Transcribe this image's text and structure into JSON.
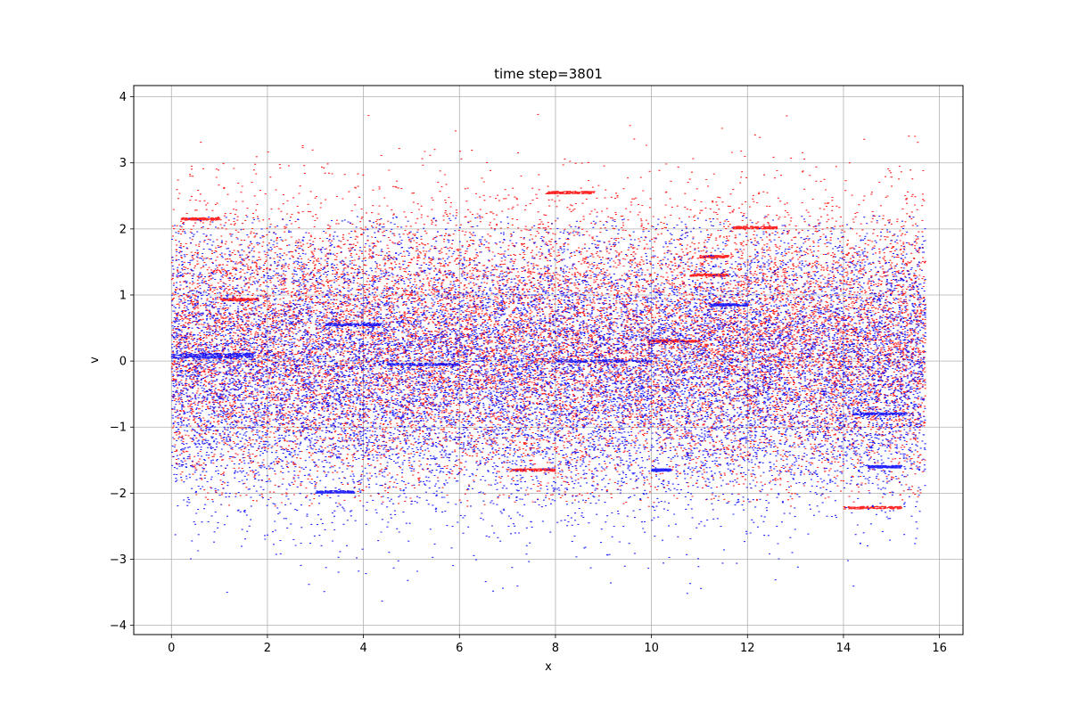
{
  "chart_data": {
    "type": "scatter",
    "title": "time step=3801",
    "xlabel": "x",
    "ylabel": "v",
    "xlim": [
      -0.785,
      16.49
    ],
    "ylim": [
      -4.14,
      4.17
    ],
    "x_ticks": [
      0,
      2,
      4,
      6,
      8,
      10,
      12,
      14,
      16
    ],
    "y_ticks": [
      -4,
      -3,
      -2,
      -1,
      0,
      1,
      2,
      3,
      4
    ],
    "x_tick_labels": [
      "0",
      "2",
      "4",
      "6",
      "8",
      "10",
      "12",
      "14",
      "16"
    ],
    "y_tick_labels": [
      "−4",
      "−3",
      "−2",
      "−1",
      "0",
      "1",
      "2",
      "3",
      "4"
    ],
    "grid": true,
    "x_range_particles": [
      0,
      15.7
    ],
    "series": [
      {
        "color": "#ff0000",
        "approx_count": 16000,
        "v_center": 0.2,
        "v_spread": 1.05,
        "v_core_range": [
          -2.0,
          2.1
        ],
        "v_tail_range": [
          -2.2,
          3.8
        ],
        "streaks": [
          {
            "x": [
              0.2,
              1.0
            ],
            "v": 2.15
          },
          {
            "x": [
              1.0,
              1.8
            ],
            "v": 0.93
          },
          {
            "x": [
              7.8,
              8.8
            ],
            "v": 2.55
          },
          {
            "x": [
              11.7,
              12.6
            ],
            "v": 2.02
          },
          {
            "x": [
              10.8,
              11.6
            ],
            "v": 1.3
          },
          {
            "x": [
              11.0,
              11.6
            ],
            "v": 1.58
          },
          {
            "x": [
              7.0,
              8.0
            ],
            "v": -1.65
          },
          {
            "x": [
              14.0,
              15.2
            ],
            "v": -2.22
          },
          {
            "x": [
              10.0,
              11.0
            ],
            "v": 0.3
          }
        ]
      },
      {
        "color": "#0000ff",
        "approx_count": 16000,
        "v_center": -0.1,
        "v_spread": 1.05,
        "v_core_range": [
          -2.0,
          2.0
        ],
        "v_tail_range": [
          -3.7,
          2.2
        ],
        "streaks": [
          {
            "x": [
              0.0,
              1.7
            ],
            "v": 0.06
          },
          {
            "x": [
              0.0,
              1.7
            ],
            "v": 0.1
          },
          {
            "x": [
              3.2,
              4.4
            ],
            "v": 0.55
          },
          {
            "x": [
              3.0,
              3.8
            ],
            "v": -1.98
          },
          {
            "x": [
              4.5,
              6.0
            ],
            "v": -0.05
          },
          {
            "x": [
              14.5,
              15.2
            ],
            "v": -1.6
          },
          {
            "x": [
              14.2,
              15.3
            ],
            "v": -0.8
          },
          {
            "x": [
              11.2,
              12.0
            ],
            "v": 0.85
          },
          {
            "x": [
              8.0,
              10.0
            ],
            "v": 0.0
          },
          {
            "x": [
              10.0,
              10.4
            ],
            "v": -1.65
          }
        ]
      }
    ]
  }
}
